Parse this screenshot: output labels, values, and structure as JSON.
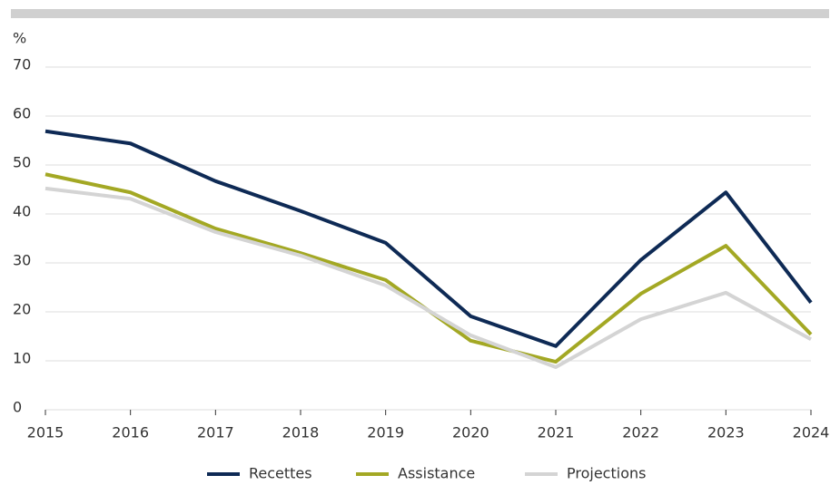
{
  "chart_data": {
    "type": "line",
    "y_label": "%",
    "categories": [
      "2015",
      "2016",
      "2017",
      "2018",
      "2019",
      "2020",
      "2021",
      "2022",
      "2023",
      "2024"
    ],
    "series": [
      {
        "name": "Recettes",
        "color": "#0e2a55",
        "values": [
          56.9,
          54.4,
          46.7,
          40.6,
          34.1,
          19.1,
          13,
          30.6,
          44.4,
          21.9
        ]
      },
      {
        "name": "Assistance",
        "color": "#a3a824",
        "values": [
          48.1,
          44.4,
          37,
          32,
          26.5,
          14.1,
          9.8,
          23.7,
          33.5,
          15.4
        ]
      },
      {
        "name": "Projections",
        "color": "#d4d4d4",
        "values": [
          45.2,
          43.1,
          36.3,
          31.5,
          25.4,
          15.2,
          8.7,
          18.5,
          23.9,
          14.4
        ]
      }
    ],
    "ylim": [
      0,
      70
    ],
    "yticks": [
      0,
      10,
      20,
      30,
      40,
      50,
      60,
      70
    ],
    "grid": true,
    "legend": "bottom"
  }
}
